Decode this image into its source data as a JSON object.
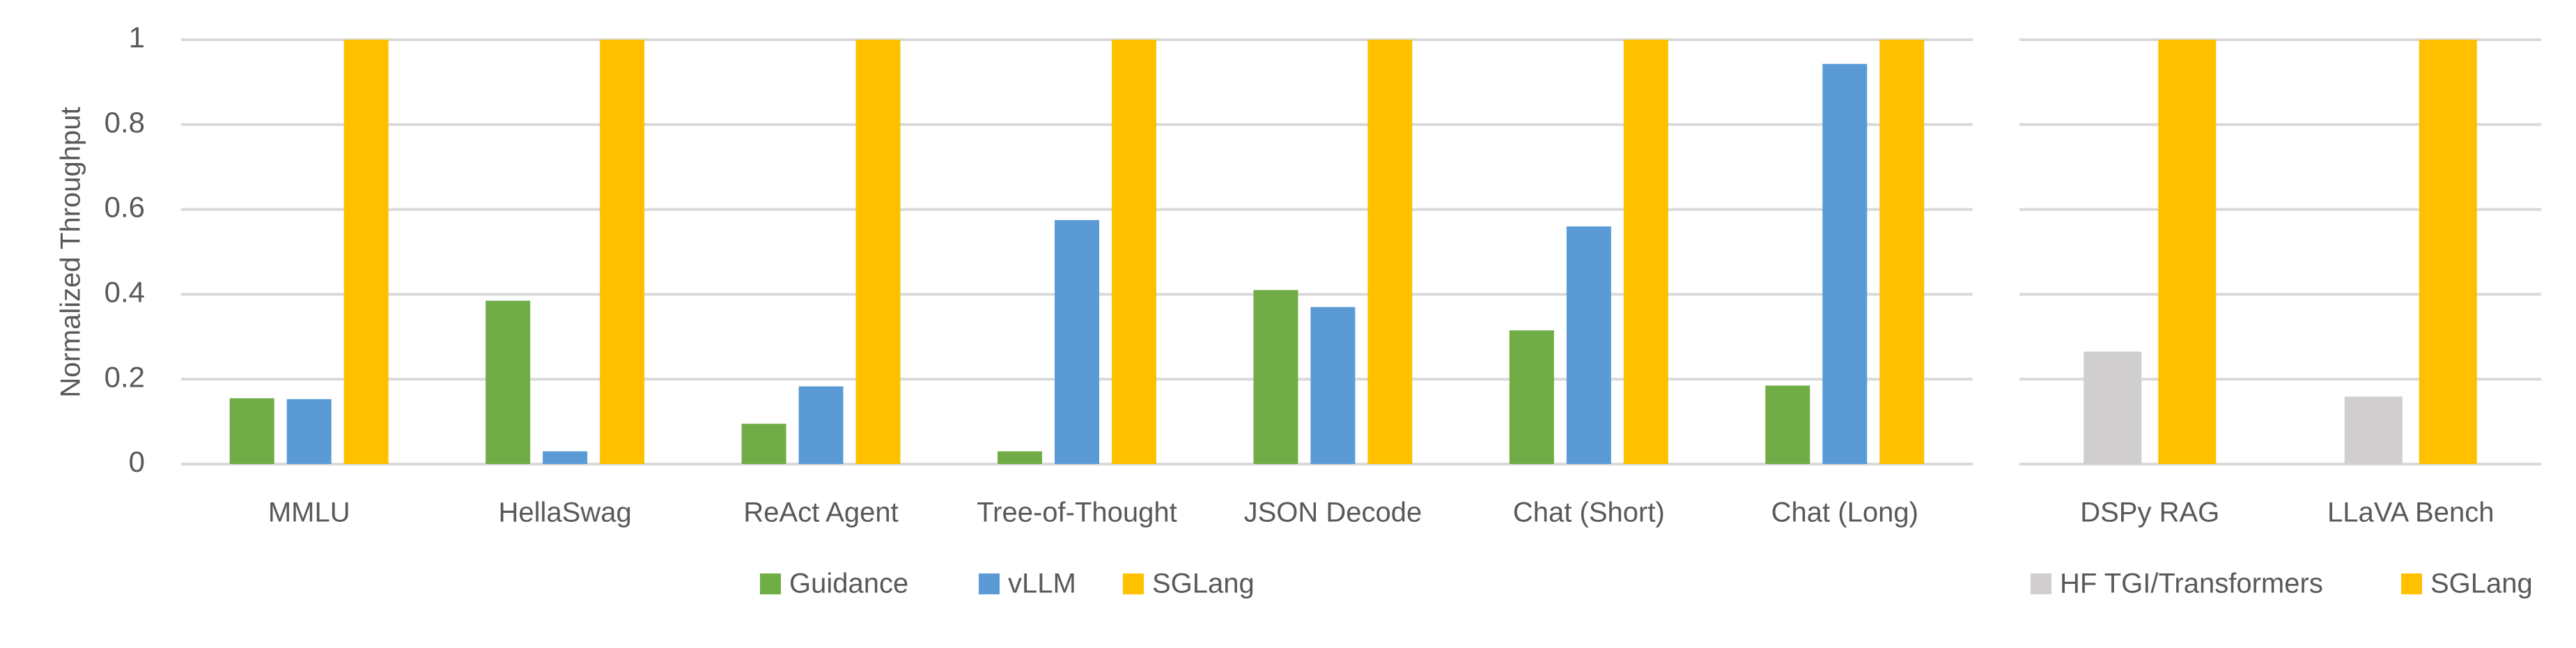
{
  "chart_data": [
    {
      "type": "bar",
      "ylabel": "Normalized Throughput",
      "ylim": [
        0,
        1
      ],
      "yticks": [
        "0",
        "0.2",
        "0.4",
        "0.6",
        "0.8",
        "1"
      ],
      "grid": true,
      "legend_position": "bottom",
      "categories": [
        "MMLU",
        "HellaSwag",
        "ReAct Agent",
        "Tree-of-Thought",
        "JSON Decode",
        "Chat (Short)",
        "Chat (Long)"
      ],
      "series": [
        {
          "name": "Guidance",
          "color": "#70ad47",
          "values": [
            0.155,
            0.385,
            0.095,
            0.03,
            0.41,
            0.315,
            0.185
          ]
        },
        {
          "name": "vLLM",
          "color": "#5b9bd5",
          "values": [
            0.153,
            0.03,
            0.183,
            0.575,
            0.37,
            0.56,
            0.943
          ]
        },
        {
          "name": "SGLang",
          "color": "#ffc000",
          "values": [
            1,
            1,
            1,
            1,
            1,
            1,
            1
          ]
        }
      ]
    },
    {
      "type": "bar",
      "ylim": [
        0,
        1
      ],
      "grid": true,
      "legend_position": "bottom",
      "categories": [
        "DSPy RAG",
        "LLaVA Bench"
      ],
      "series": [
        {
          "name": "HF TGI/Transformers",
          "color": "#d0cece",
          "values": [
            0.265,
            0.159
          ]
        },
        {
          "name": "SGLang",
          "color": "#ffc000",
          "values": [
            1,
            1
          ]
        }
      ]
    }
  ]
}
